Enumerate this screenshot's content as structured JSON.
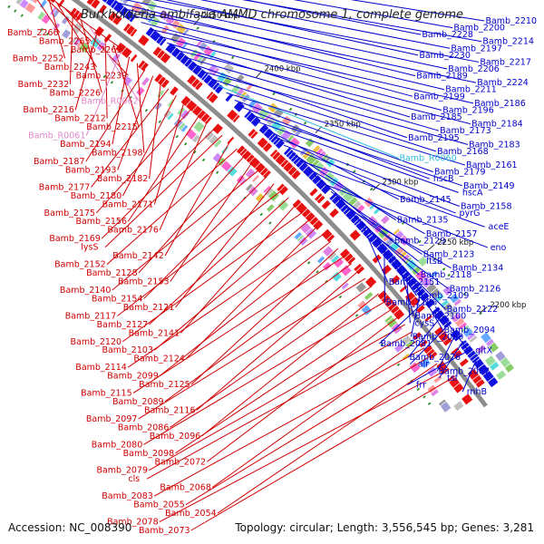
{
  "title": "Burkholderia ambifaria AMMD chromosome 1, complete genome",
  "accession": "Accession: NC_008390",
  "info": "Topology: circular; Length: 3,556,545 bp; Genes: 3,281",
  "colors": {
    "left_label": "#d00000",
    "left_label_alt": "#e088cc",
    "right_label": "#0000cc",
    "right_label_alt": "#33bbdd",
    "backbone": "#8c8c8c",
    "forward_gene": "#e81010",
    "reverse_gene": "#1010e0",
    "orf_tick": "#2a8a2a"
  },
  "ticks": [
    "2450 kbp",
    "2400 kbp",
    "2350 kbp",
    "2300 kbp",
    "2250 kbp",
    "2200 kbp"
  ],
  "left_labels": [
    {
      "text": "Bamb_2266"
    },
    {
      "text": "Bamb_2265"
    },
    {
      "text": "Bamb_2263"
    },
    {
      "text": "Bamb_2252"
    },
    {
      "text": "Bamb_2243"
    },
    {
      "text": "Bamb_2239"
    },
    {
      "text": "Bamb_2232"
    },
    {
      "text": "Bamb_2226"
    },
    {
      "text": "Bamb_R0062",
      "alt": true
    },
    {
      "text": "Bamb_2216"
    },
    {
      "text": "Bamb_2212"
    },
    {
      "text": "Bamb_2215"
    },
    {
      "text": "Bamb_R0061",
      "alt": true
    },
    {
      "text": "Bamb_2194"
    },
    {
      "text": "Bamb_2198"
    },
    {
      "text": "Bamb_2187"
    },
    {
      "text": "Bamb_2193"
    },
    {
      "text": "Bamb_2182"
    },
    {
      "text": "Bamb_2177"
    },
    {
      "text": "Bamb_2180"
    },
    {
      "text": "Bamb_2171"
    },
    {
      "text": "Bamb_2175"
    },
    {
      "text": "Bamb_2156"
    },
    {
      "text": "Bamb_2176"
    },
    {
      "text": "Bamb_2169"
    },
    {
      "text": "lysS"
    },
    {
      "text": "Bamb_2142"
    },
    {
      "text": "Bamb_2152"
    },
    {
      "text": "Bamb_2128"
    },
    {
      "text": "Bamb_2153"
    },
    {
      "text": "Bamb_2140"
    },
    {
      "text": "Bamb_2154"
    },
    {
      "text": "Bamb_2121"
    },
    {
      "text": "Bamb_2117"
    },
    {
      "text": "Bamb_2127"
    },
    {
      "text": "Bamb_2141"
    },
    {
      "text": "Bamb_2120"
    },
    {
      "text": "Bamb_2103"
    },
    {
      "text": "Bamb_2124"
    },
    {
      "text": "Bamb_2114"
    },
    {
      "text": "Bamb_2099"
    },
    {
      "text": "Bamb_2125"
    },
    {
      "text": "Bamb_2115"
    },
    {
      "text": "Bamb_2089"
    },
    {
      "text": "Bamb_2116"
    },
    {
      "text": "Bamb_2097"
    },
    {
      "text": "Bamb_2086"
    },
    {
      "text": "Bamb_2096"
    },
    {
      "text": "Bamb_2080"
    },
    {
      "text": "Bamb_2098"
    },
    {
      "text": "Bamb_2072"
    },
    {
      "text": "Bamb_2079"
    },
    {
      "text": "cls"
    },
    {
      "text": "Bamb_2068"
    },
    {
      "text": "Bamb_2083"
    },
    {
      "text": "Bamb_2055"
    },
    {
      "text": "Bamb_2054"
    },
    {
      "text": "Bamb_2078"
    },
    {
      "text": "Bamb_2073"
    }
  ],
  "right_labels": [
    {
      "text": "Bamb_2210"
    },
    {
      "text": "Bamb_2200"
    },
    {
      "text": "Bamb_2228"
    },
    {
      "text": "Bamb_2214"
    },
    {
      "text": "Bamb_2197"
    },
    {
      "text": "Bamb_2230"
    },
    {
      "text": "Bamb_2217"
    },
    {
      "text": "Bamb_2206"
    },
    {
      "text": "Bamb_2189"
    },
    {
      "text": "Bamb_2224"
    },
    {
      "text": "Bamb_2211"
    },
    {
      "text": "Bamb_2199"
    },
    {
      "text": "Bamb_2186"
    },
    {
      "text": "Bamb_2196"
    },
    {
      "text": "Bamb_2185"
    },
    {
      "text": "Bamb_2184"
    },
    {
      "text": "Bamb_2173"
    },
    {
      "text": "Bamb_2195"
    },
    {
      "text": "Bamb_2183"
    },
    {
      "text": "Bamb_2168"
    },
    {
      "text": "Bamb_R0060",
      "alt": true
    },
    {
      "text": "Bamb_2161"
    },
    {
      "text": "Bamb_2179"
    },
    {
      "text": "hscB"
    },
    {
      "text": "Bamb_2149"
    },
    {
      "text": "hscA"
    },
    {
      "text": "Bamb_2145"
    },
    {
      "text": "Bamb_2158"
    },
    {
      "text": "pyrG"
    },
    {
      "text": "Bamb_2135"
    },
    {
      "text": "aceE"
    },
    {
      "text": "Bamb_2157"
    },
    {
      "text": "Bamb_2129"
    },
    {
      "text": "eno"
    },
    {
      "text": "Bamb_2123"
    },
    {
      "text": "ftsB"
    },
    {
      "text": "Bamb_2134"
    },
    {
      "text": "Bamb_2118"
    },
    {
      "text": "Bamb_2151"
    },
    {
      "text": "Bamb_2126"
    },
    {
      "text": "Bamb_2109"
    },
    {
      "text": "Bamb_2106"
    },
    {
      "text": "Bamb_2122"
    },
    {
      "text": "Bamb_2100"
    },
    {
      "text": "cysS"
    },
    {
      "text": "Bamb_2094"
    },
    {
      "text": "Bamb_2090"
    },
    {
      "text": "Bamb_2081"
    },
    {
      "text": "gltX"
    },
    {
      "text": "Bamb_2076"
    },
    {
      "text": "alr"
    },
    {
      "text": "Bamb_2067"
    },
    {
      "text": "tsf"
    },
    {
      "text": "frr"
    },
    {
      "text": "rnhB"
    }
  ]
}
